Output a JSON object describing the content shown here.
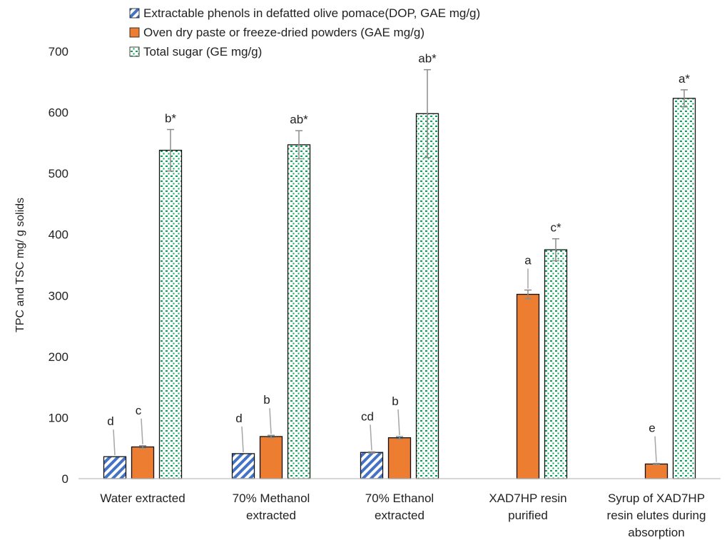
{
  "chart_data": {
    "type": "bar",
    "ylabel": "TPC and TSC mg/ g solids",
    "ylim": [
      0,
      700
    ],
    "yticks": [
      0,
      100,
      200,
      300,
      400,
      500,
      600,
      700
    ],
    "categories": [
      [
        "Water extracted"
      ],
      [
        "70% Methanol",
        "extracted"
      ],
      [
        "70% Ethanol",
        "extracted"
      ],
      [
        "XAD7HP resin",
        "purified"
      ],
      [
        "Syrup of XAD7HP",
        "resin elutes during",
        "absorption"
      ]
    ],
    "legend_position": "top",
    "series": [
      {
        "name": "Extractable phenols in defatted olive pomace(DOP,  GAE mg/g)",
        "color": "#4472c4",
        "pattern": "diagonal-stripes",
        "values": [
          36,
          41,
          43,
          null,
          null
        ],
        "errors": [
          0,
          0,
          1,
          null,
          null
        ],
        "labels": [
          "d",
          "d",
          "cd",
          null,
          null
        ]
      },
      {
        "name": "Oven dry paste or freeze-dried powders (GAE mg/g)",
        "color": "#ed7d31",
        "pattern": "solid",
        "values": [
          52,
          69,
          67,
          302,
          24
        ],
        "errors": [
          2,
          2,
          2,
          7,
          1
        ],
        "labels": [
          "c",
          "b",
          "b",
          "a",
          "e"
        ]
      },
      {
        "name": "Total sugar (GE  mg/g)",
        "color": "#00a651",
        "pattern": "dots",
        "values": [
          538,
          547,
          598,
          375,
          623
        ],
        "errors": [
          34,
          23,
          72,
          18,
          14
        ],
        "labels": [
          "b*",
          "ab*",
          "ab*",
          "c*",
          "a*"
        ]
      }
    ]
  }
}
